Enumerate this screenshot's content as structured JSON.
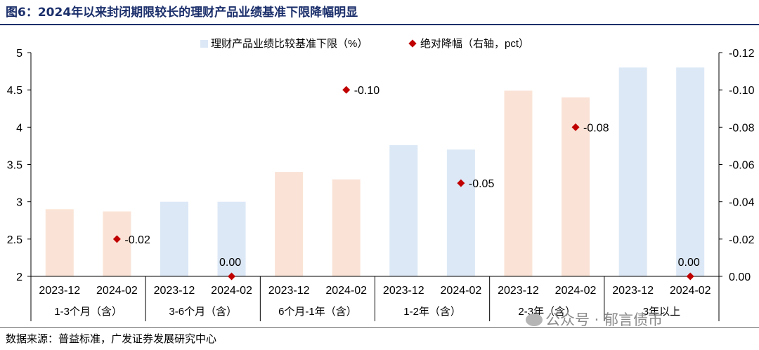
{
  "figure": {
    "title": "图6：2024年以来封闭期限较长的理财产品业绩基准下限降幅明显",
    "source": "数据来源：普益标准，广发证券发展研究中心",
    "watermark": "公众号 · 郁言债市"
  },
  "chart_data": {
    "type": "bar",
    "categories": [
      "2023-12",
      "2024-02",
      "2023-12",
      "2024-02",
      "2023-12",
      "2024-02",
      "2023-12",
      "2024-02",
      "2023-12",
      "2024-02",
      "2023-12",
      "2024-02"
    ],
    "groups": [
      "1-3个月（含）",
      "3-6个月（含）",
      "6个月-1年（含）",
      "1-2年（含）",
      "2-3年（含）",
      "3年以上"
    ],
    "series": [
      {
        "name": "理财产品业绩比较基准下限（%）",
        "type": "bar",
        "axis": "left",
        "values": [
          2.9,
          2.87,
          3.0,
          3.0,
          3.4,
          3.3,
          3.76,
          3.7,
          4.49,
          4.4,
          4.8,
          4.8
        ],
        "colors": [
          "#fae3d6",
          "#fae3d6",
          "#dce8f6",
          "#dce8f6",
          "#fae3d6",
          "#fae3d6",
          "#dce8f6",
          "#dce8f6",
          "#fae3d6",
          "#fae3d6",
          "#dce8f6",
          "#dce8f6"
        ]
      },
      {
        "name": "绝对降幅（右轴，pct）",
        "type": "scatter",
        "axis": "right",
        "positions": [
          1,
          3,
          5,
          7,
          9,
          11
        ],
        "values": [
          -0.02,
          0.0,
          -0.1,
          -0.05,
          -0.08,
          0.0
        ],
        "labels": [
          "-0.02",
          "0.00",
          "-0.10",
          "-0.05",
          "-0.08",
          "0.00"
        ],
        "color": "#c00000"
      }
    ],
    "y_left": {
      "min": 2,
      "max": 5,
      "ticks": [
        "2",
        "2.5",
        "3",
        "3.5",
        "4",
        "4.5",
        "5"
      ]
    },
    "y_right": {
      "min": 0.0,
      "max": -0.12,
      "reversed": true,
      "ticks": [
        "0.00",
        "-0.02",
        "-0.04",
        "-0.06",
        "-0.08",
        "-0.10",
        "-0.12"
      ]
    },
    "legend_position": "top",
    "grid": false
  }
}
